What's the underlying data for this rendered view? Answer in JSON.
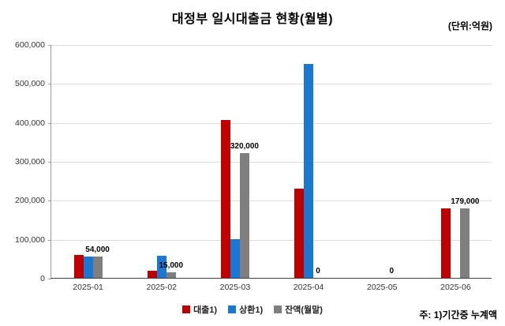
{
  "title": "대정부 일시대출금 현황(월별)",
  "unit_label": "(단위:억원)",
  "note": "주: 1)기간중 누계액",
  "colors": {
    "loan": "#c00000",
    "repay": "#1b78d2",
    "balance": "#7f7f7f",
    "gridline": "#dcdcdc"
  },
  "chart_data": {
    "type": "bar",
    "title": "대정부 일시대출금 현황(월별)",
    "unit": "(단위:억원)",
    "categories": [
      "2025-01",
      "2025-02",
      "2025-03",
      "2025-04",
      "2025-05",
      "2025-06"
    ],
    "series": [
      {
        "name": "대출1)",
        "color_key": "loan",
        "values": [
          58000,
          18000,
          405000,
          230000,
          0,
          179000
        ]
      },
      {
        "name": "상환1)",
        "color_key": "repay",
        "values": [
          54000,
          57000,
          100000,
          550000,
          0,
          0
        ]
      },
      {
        "name": "잔액(월말)",
        "color_key": "balance",
        "values": [
          54000,
          15000,
          320000,
          0,
          0,
          179000
        ]
      }
    ],
    "data_labels": [
      "54,000",
      "15,000",
      "320,000",
      "0",
      "0",
      "179,000"
    ],
    "xlabel": "",
    "ylabel": "",
    "ylim": [
      0,
      600000
    ],
    "ytick_step": 100000,
    "grid": true,
    "legend_position": "bottom"
  }
}
